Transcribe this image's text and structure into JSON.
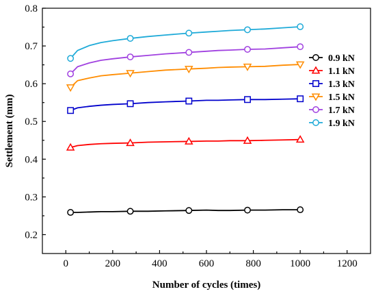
{
  "chart_data": {
    "type": "line",
    "title": "",
    "xlabel": "Number of cycles (times)",
    "ylabel": "Settlement (mm)",
    "xlim": [
      -100,
      1300
    ],
    "ylim": [
      0.15,
      0.8
    ],
    "xticks": [
      0,
      200,
      400,
      600,
      800,
      1000,
      1200
    ],
    "yticks": [
      0.2,
      0.3,
      0.4,
      0.5,
      0.6,
      0.7,
      0.8
    ],
    "xtick_labels": [
      "0",
      "200",
      "400",
      "600",
      "800",
      "1000",
      "1200"
    ],
    "ytick_labels": [
      "0.2",
      "0.3",
      "0.4",
      "0.5",
      "0.6",
      "0.7",
      "0.8"
    ],
    "grid": false,
    "legend_position": "right",
    "marker_x": [
      20,
      275,
      525,
      775,
      1000
    ],
    "series": [
      {
        "name": "0.9 kN",
        "color": "#000000",
        "marker": "circle",
        "x": [
          20,
          50,
          100,
          150,
          200,
          275,
          350,
          425,
          525,
          600,
          650,
          700,
          775,
          850,
          925,
          1000
        ],
        "y": [
          0.259,
          0.259,
          0.26,
          0.261,
          0.261,
          0.262,
          0.262,
          0.263,
          0.264,
          0.265,
          0.264,
          0.264,
          0.265,
          0.265,
          0.266,
          0.266
        ]
      },
      {
        "name": "1.1 kN",
        "color": "#ff0000",
        "marker": "triangle",
        "x": [
          20,
          50,
          100,
          150,
          200,
          275,
          350,
          425,
          525,
          600,
          650,
          700,
          775,
          850,
          925,
          1000
        ],
        "y": [
          0.431,
          0.436,
          0.439,
          0.441,
          0.442,
          0.443,
          0.445,
          0.446,
          0.447,
          0.448,
          0.448,
          0.449,
          0.449,
          0.45,
          0.451,
          0.452
        ]
      },
      {
        "name": "1.3 kN",
        "color": "#0000cc",
        "marker": "square",
        "x": [
          20,
          50,
          100,
          150,
          200,
          275,
          350,
          425,
          525,
          600,
          650,
          700,
          775,
          850,
          925,
          1000
        ],
        "y": [
          0.529,
          0.536,
          0.54,
          0.543,
          0.545,
          0.547,
          0.55,
          0.552,
          0.554,
          0.556,
          0.556,
          0.557,
          0.558,
          0.558,
          0.559,
          0.56
        ]
      },
      {
        "name": "1.5 kN",
        "color": "#ff8c00",
        "marker": "triangle-down",
        "x": [
          20,
          50,
          100,
          150,
          200,
          275,
          350,
          425,
          525,
          600,
          650,
          700,
          775,
          850,
          925,
          1000
        ],
        "y": [
          0.59,
          0.608,
          0.615,
          0.621,
          0.624,
          0.628,
          0.632,
          0.636,
          0.639,
          0.641,
          0.643,
          0.644,
          0.645,
          0.646,
          0.649,
          0.651
        ]
      },
      {
        "name": "1.7 kN",
        "color": "#a040e0",
        "marker": "circle",
        "x": [
          20,
          50,
          100,
          150,
          200,
          275,
          350,
          425,
          525,
          600,
          650,
          700,
          775,
          850,
          925,
          1000
        ],
        "y": [
          0.626,
          0.645,
          0.655,
          0.662,
          0.666,
          0.671,
          0.675,
          0.679,
          0.683,
          0.686,
          0.688,
          0.689,
          0.691,
          0.692,
          0.695,
          0.698
        ]
      },
      {
        "name": "1.9 kN",
        "color": "#1eaad8",
        "marker": "circle",
        "x": [
          20,
          50,
          100,
          150,
          200,
          275,
          350,
          425,
          525,
          600,
          650,
          700,
          775,
          850,
          925,
          1000
        ],
        "y": [
          0.667,
          0.688,
          0.701,
          0.709,
          0.714,
          0.72,
          0.725,
          0.729,
          0.734,
          0.737,
          0.739,
          0.741,
          0.743,
          0.745,
          0.748,
          0.751
        ]
      }
    ]
  }
}
